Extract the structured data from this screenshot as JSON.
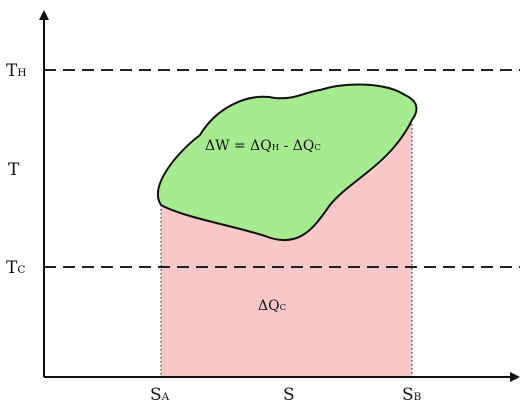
{
  "diagram": {
    "axes": {
      "y_label": "T",
      "x_label": "S"
    },
    "levels": {
      "hot": {
        "main": "T",
        "sub": "H"
      },
      "cold": {
        "main": "T",
        "sub": "C"
      }
    },
    "entropy_marks": {
      "a": {
        "main": "S",
        "sub": "A"
      },
      "b": {
        "main": "S",
        "sub": "B"
      }
    },
    "work_region": {
      "label": {
        "part1": "ΔW = ΔQ",
        "sub1": "H",
        "part2": " - ΔQ",
        "sub2": "C"
      },
      "fill": "#a6eb8f"
    },
    "heat_region": {
      "label": {
        "main": "ΔQ",
        "sub": "C"
      },
      "fill": "#f8c7c7"
    },
    "colors": {
      "axis": "#111111",
      "dashed": "#222222"
    }
  }
}
